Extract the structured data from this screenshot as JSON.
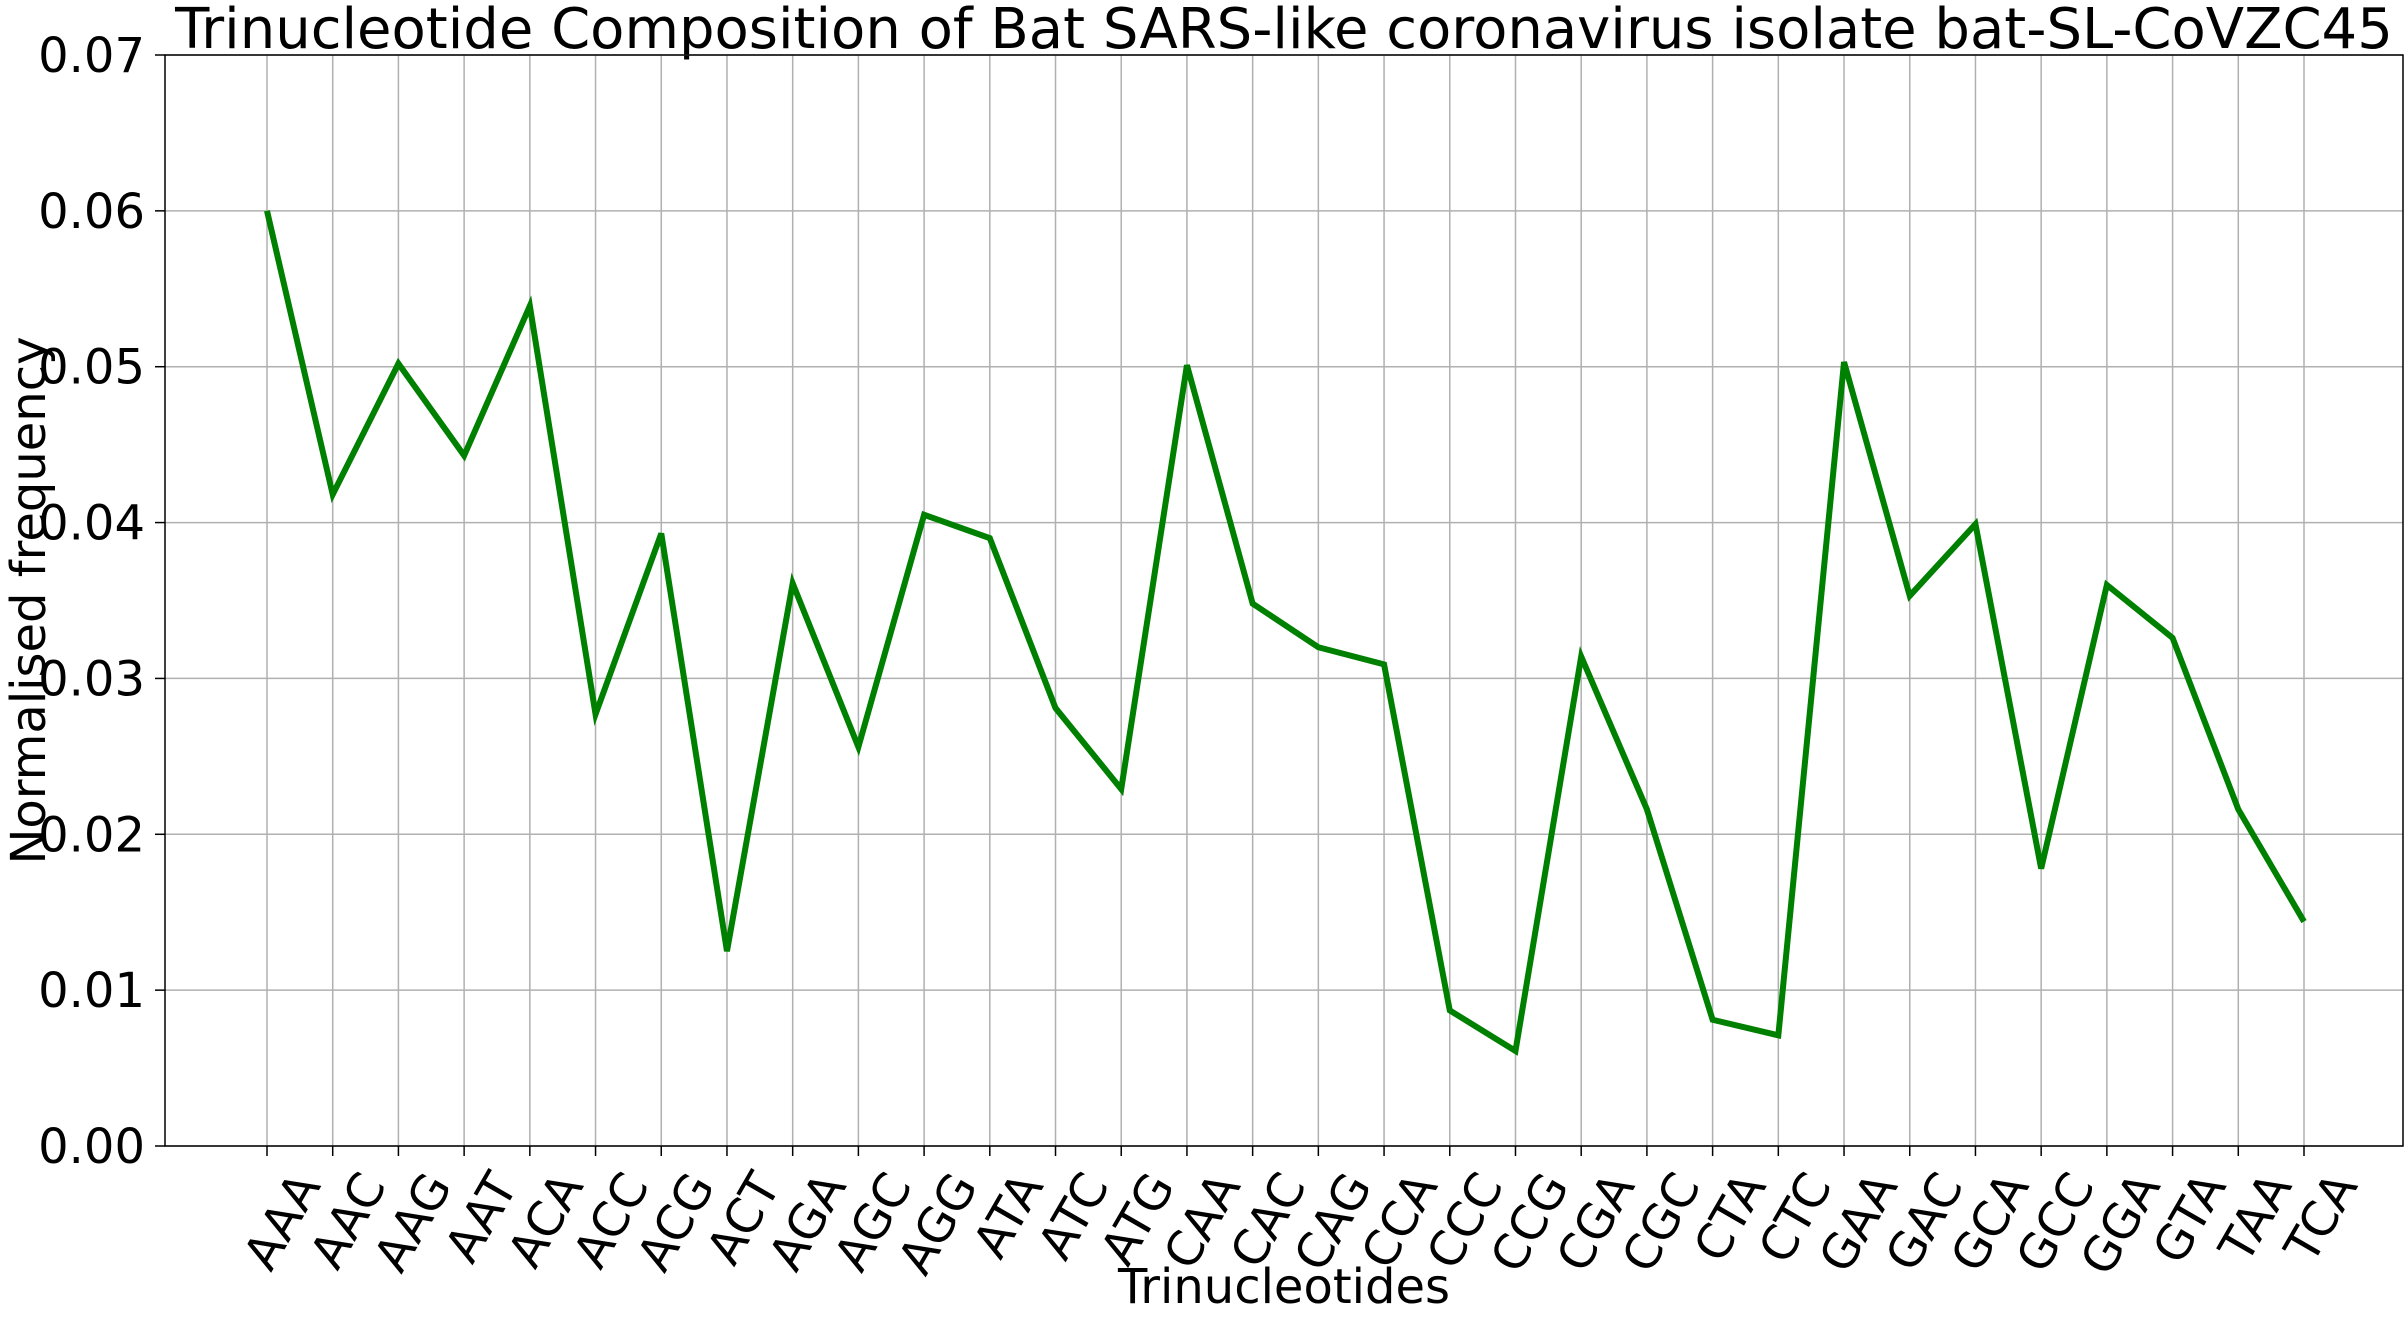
{
  "chart_data": {
    "type": "line",
    "title": "Trinucleotide Composition of Bat SARS-like coronavirus isolate bat-SL-CoVZC45",
    "xlabel": "Trinucleotides",
    "ylabel": "Normalised frequency",
    "ylim": [
      0,
      0.07
    ],
    "yticks": [
      "0.00",
      "0.01",
      "0.02",
      "0.03",
      "0.04",
      "0.05",
      "0.06",
      "0.07"
    ],
    "grid": true,
    "line_color": "#008000",
    "categories": [
      "AAA",
      "AAC",
      "AAG",
      "AAT",
      "ACA",
      "ACC",
      "ACG",
      "ACT",
      "AGA",
      "AGC",
      "AGG",
      "ATA",
      "ATC",
      "ATG",
      "CAA",
      "CAC",
      "CAG",
      "CCA",
      "CCC",
      "CCG",
      "CGA",
      "CGC",
      "CTA",
      "CTC",
      "GAA",
      "GAC",
      "GCA",
      "GCC",
      "GGA",
      "GTA",
      "TAA",
      "TCA"
    ],
    "values": [
      0.06,
      0.0418,
      0.0502,
      0.0443,
      0.0539,
      0.0277,
      0.0393,
      0.0125,
      0.0361,
      0.0256,
      0.0405,
      0.039,
      0.0281,
      0.0229,
      0.0501,
      0.0348,
      0.032,
      0.0309,
      0.0087,
      0.0061,
      0.0314,
      0.0216,
      0.0081,
      0.0071,
      0.0503,
      0.0353,
      0.0399,
      0.0178,
      0.036,
      0.0326,
      0.0216,
      0.0144
    ]
  }
}
